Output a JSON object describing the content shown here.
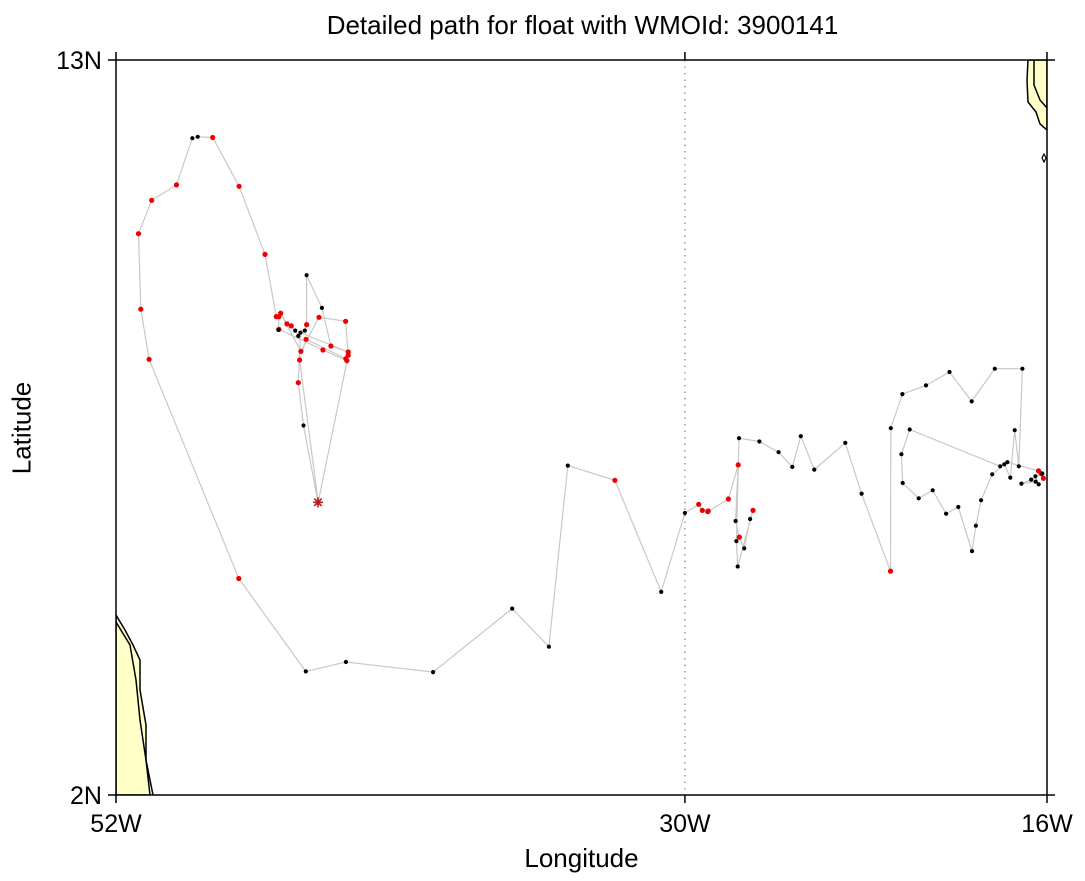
{
  "chart_data": {
    "type": "scatter",
    "title": "Detailed path for float with WMOId: 3900141",
    "xlabel": "Longitude",
    "ylabel": "Latitude",
    "xlim": [
      -52,
      -16
    ],
    "ylim": [
      2,
      13
    ],
    "x_ticks": [
      {
        "value": -52,
        "label": "52W"
      },
      {
        "value": -30,
        "label": "30W"
      },
      {
        "value": -16,
        "label": "16W"
      }
    ],
    "y_ticks": [
      {
        "value": 2,
        "label": "2N"
      },
      {
        "value": 13,
        "label": "13N"
      }
    ],
    "reference_line_lon": -30,
    "colors": {
      "path": "#c8c8c8",
      "point_black": "#000000",
      "point_red": "#ee0000",
      "start_marker": "#b22222",
      "land": "#ffffc8",
      "coast": "#000000",
      "frame": "#000000"
    },
    "start_marker": {
      "lon": -44.19,
      "lat": 6.38
    },
    "series": [
      {
        "points": [
          {
            "lon": -44.19,
            "lat": 6.38,
            "c": "r"
          },
          {
            "lon": -44.75,
            "lat": 7.53,
            "c": "k"
          },
          {
            "lon": -44.95,
            "lat": 8.17,
            "c": "r"
          },
          {
            "lon": -44.87,
            "lat": 8.92,
            "c": "k"
          },
          {
            "lon": -43.02,
            "lat": 8.63,
            "c": "r"
          },
          {
            "lon": -43.69,
            "lat": 8.72,
            "c": "r"
          },
          {
            "lon": -44.04,
            "lat": 9.29,
            "c": "k"
          },
          {
            "lon": -44.63,
            "lat": 9.78,
            "c": "k"
          },
          {
            "lon": -44.63,
            "lat": 9.04,
            "c": "r"
          },
          {
            "lon": -44.7,
            "lat": 8.95,
            "c": "k"
          },
          {
            "lon": -44.95,
            "lat": 8.87,
            "c": "k"
          },
          {
            "lon": -45.07,
            "lat": 8.95,
            "c": "k"
          },
          {
            "lon": -45.22,
            "lat": 9.02,
            "c": "r"
          },
          {
            "lon": -45.39,
            "lat": 9.05,
            "c": "r"
          },
          {
            "lon": -45.63,
            "lat": 9.21,
            "c": "r"
          },
          {
            "lon": -44.85,
            "lat": 8.64,
            "c": "r"
          },
          {
            "lon": -44.15,
            "lat": 9.15,
            "c": "r"
          },
          {
            "lon": -43.12,
            "lat": 9.09,
            "c": "r"
          },
          {
            "lon": -43.02,
            "lat": 8.58,
            "c": "r"
          },
          {
            "lon": -44.18,
            "lat": 6.38,
            "c": "k"
          },
          {
            "lon": -44.9,
            "lat": 8.51,
            "c": "r"
          },
          {
            "lon": -44.65,
            "lat": 8.82,
            "c": "r"
          },
          {
            "lon": -43.11,
            "lat": 8.53,
            "c": "r"
          },
          {
            "lon": -43.07,
            "lat": 8.5,
            "c": "r"
          },
          {
            "lon": -44.0,
            "lat": 8.66,
            "c": "r"
          },
          {
            "lon": -45.7,
            "lat": 8.97,
            "c": "r"
          },
          {
            "lon": -45.72,
            "lat": 8.96,
            "c": "k"
          },
          {
            "lon": -45.7,
            "lat": 9.16,
            "c": "r"
          },
          {
            "lon": -45.8,
            "lat": 9.16,
            "c": "r"
          },
          {
            "lon": -46.24,
            "lat": 10.09,
            "c": "r"
          },
          {
            "lon": -47.24,
            "lat": 11.11,
            "c": "r"
          },
          {
            "lon": -48.26,
            "lat": 11.84,
            "c": "r"
          },
          {
            "lon": -48.84,
            "lat": 11.85,
            "c": "k"
          },
          {
            "lon": -49.05,
            "lat": 11.83,
            "c": "k"
          },
          {
            "lon": -49.66,
            "lat": 11.13,
            "c": "r"
          },
          {
            "lon": -50.62,
            "lat": 10.9,
            "c": "r"
          },
          {
            "lon": -51.13,
            "lat": 10.4,
            "c": "r"
          },
          {
            "lon": -51.04,
            "lat": 9.27,
            "c": "r"
          },
          {
            "lon": -50.72,
            "lat": 8.52,
            "c": "r"
          },
          {
            "lon": -47.25,
            "lat": 5.24,
            "c": "r"
          },
          {
            "lon": -44.66,
            "lat": 3.85,
            "c": "k"
          },
          {
            "lon": -43.11,
            "lat": 3.99,
            "c": "k"
          },
          {
            "lon": -39.74,
            "lat": 3.84,
            "c": "k"
          },
          {
            "lon": -36.68,
            "lat": 4.79,
            "c": "k"
          },
          {
            "lon": -35.26,
            "lat": 4.22,
            "c": "k"
          },
          {
            "lon": -34.53,
            "lat": 6.93,
            "c": "k"
          },
          {
            "lon": -32.71,
            "lat": 6.71,
            "c": "r"
          },
          {
            "lon": -30.92,
            "lat": 5.04,
            "c": "k"
          },
          {
            "lon": -30.0,
            "lat": 6.22,
            "c": "k"
          },
          {
            "lon": -29.47,
            "lat": 6.35,
            "c": "r"
          },
          {
            "lon": -29.33,
            "lat": 6.26,
            "c": "r"
          },
          {
            "lon": -29.1,
            "lat": 6.25,
            "c": "r"
          },
          {
            "lon": -29.12,
            "lat": 6.24,
            "c": "r"
          },
          {
            "lon": -28.32,
            "lat": 6.43,
            "c": "r"
          },
          {
            "lon": -27.94,
            "lat": 6.94,
            "c": "r"
          },
          {
            "lon": -28.04,
            "lat": 6.1,
            "c": "k"
          },
          {
            "lon": -27.9,
            "lat": 5.86,
            "c": "r"
          },
          {
            "lon": -27.71,
            "lat": 5.69,
            "c": "k"
          },
          {
            "lon": -27.48,
            "lat": 6.13,
            "c": "k"
          },
          {
            "lon": -27.37,
            "lat": 6.26,
            "c": "r"
          },
          {
            "lon": -27.96,
            "lat": 5.42,
            "c": "k"
          },
          {
            "lon": -28.01,
            "lat": 5.8,
            "c": "k"
          },
          {
            "lon": -27.91,
            "lat": 7.34,
            "c": "k"
          },
          {
            "lon": -27.12,
            "lat": 7.29,
            "c": "k"
          },
          {
            "lon": -26.38,
            "lat": 7.13,
            "c": "k"
          },
          {
            "lon": -25.85,
            "lat": 6.91,
            "c": "k"
          },
          {
            "lon": -25.52,
            "lat": 7.37,
            "c": "k"
          },
          {
            "lon": -25.0,
            "lat": 6.87,
            "c": "k"
          },
          {
            "lon": -23.8,
            "lat": 7.27,
            "c": "k"
          },
          {
            "lon": -23.17,
            "lat": 6.51,
            "c": "k"
          },
          {
            "lon": -22.05,
            "lat": 5.35,
            "c": "r"
          },
          {
            "lon": -22.04,
            "lat": 7.49,
            "c": "k"
          },
          {
            "lon": -21.59,
            "lat": 8.0,
            "c": "k"
          },
          {
            "lon": -20.68,
            "lat": 8.13,
            "c": "k"
          },
          {
            "lon": -19.77,
            "lat": 8.33,
            "c": "k"
          },
          {
            "lon": -18.91,
            "lat": 7.89,
            "c": "k"
          },
          {
            "lon": -18.02,
            "lat": 8.38,
            "c": "k"
          },
          {
            "lon": -16.95,
            "lat": 8.38,
            "c": "k"
          },
          {
            "lon": -17.09,
            "lat": 6.92,
            "c": "k"
          },
          {
            "lon": -17.25,
            "lat": 7.46,
            "c": "k"
          },
          {
            "lon": -17.42,
            "lat": 6.75,
            "c": "k"
          },
          {
            "lon": -17.65,
            "lat": 6.95,
            "c": "k"
          },
          {
            "lon": -18.12,
            "lat": 6.8,
            "c": "k"
          },
          {
            "lon": -18.55,
            "lat": 6.41,
            "c": "k"
          },
          {
            "lon": -18.75,
            "lat": 6.03,
            "c": "k"
          },
          {
            "lon": -18.9,
            "lat": 5.65,
            "c": "k"
          },
          {
            "lon": -19.43,
            "lat": 6.31,
            "c": "k"
          },
          {
            "lon": -19.9,
            "lat": 6.21,
            "c": "k"
          },
          {
            "lon": -20.42,
            "lat": 6.56,
            "c": "k"
          },
          {
            "lon": -20.96,
            "lat": 6.44,
            "c": "k"
          },
          {
            "lon": -21.58,
            "lat": 6.67,
            "c": "k"
          },
          {
            "lon": -21.63,
            "lat": 7.1,
            "c": "k"
          },
          {
            "lon": -21.31,
            "lat": 7.47,
            "c": "k"
          },
          {
            "lon": -17.81,
            "lat": 6.92,
            "c": "k"
          },
          {
            "lon": -17.53,
            "lat": 6.98,
            "c": "k"
          },
          {
            "lon": -16.33,
            "lat": 6.85,
            "c": "r"
          },
          {
            "lon": -16.14,
            "lat": 6.74,
            "c": "r"
          },
          {
            "lon": -16.22,
            "lat": 6.81,
            "c": "r"
          },
          {
            "lon": -16.61,
            "lat": 6.72,
            "c": "k"
          },
          {
            "lon": -16.99,
            "lat": 6.66,
            "c": "k"
          },
          {
            "lon": -16.44,
            "lat": 6.69,
            "c": "k"
          },
          {
            "lon": -16.32,
            "lat": 6.65,
            "c": "k"
          },
          {
            "lon": -16.45,
            "lat": 6.77,
            "c": "k"
          },
          {
            "lon": -16.18,
            "lat": 6.81,
            "c": "k"
          }
        ]
      }
    ]
  }
}
